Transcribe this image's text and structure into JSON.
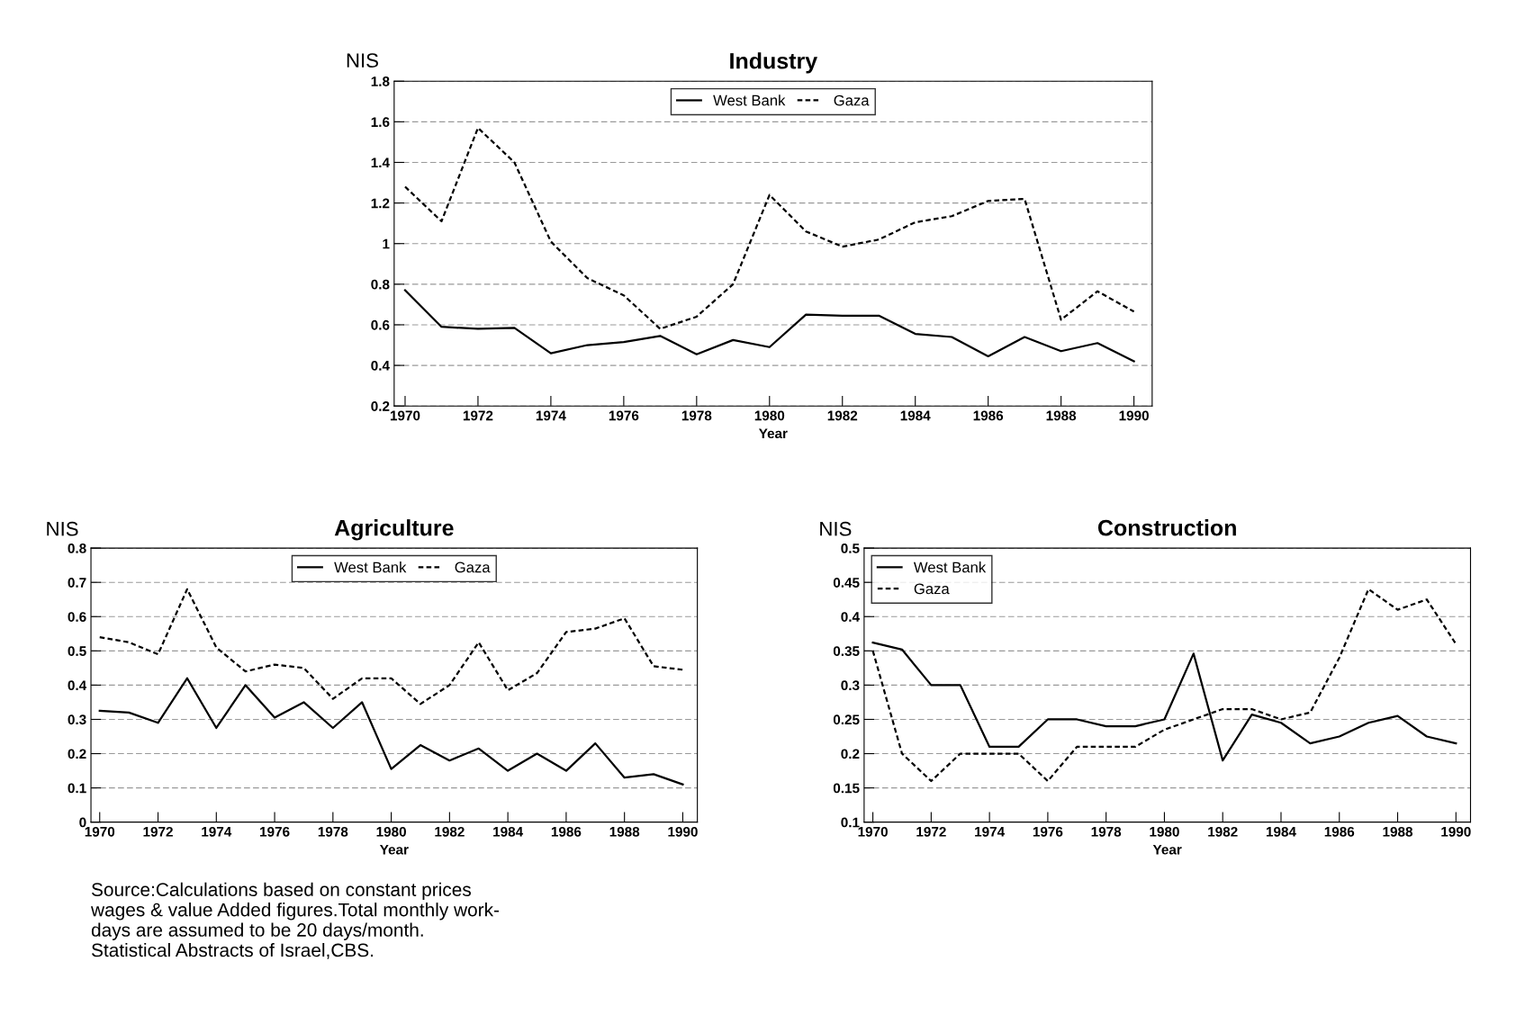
{
  "chart_data": [
    {
      "type": "line",
      "title": "Industry",
      "xlabel": "Year",
      "ylabel": "NIS",
      "x": [
        1970,
        1971,
        1972,
        1973,
        1974,
        1975,
        1976,
        1977,
        1978,
        1979,
        1980,
        1981,
        1982,
        1983,
        1984,
        1985,
        1986,
        1987,
        1988,
        1989,
        1990
      ],
      "xlim": [
        1969.7,
        1990.5
      ],
      "xticks": [
        1970,
        1972,
        1974,
        1976,
        1978,
        1980,
        1982,
        1984,
        1986,
        1988,
        1990
      ],
      "ylim": [
        0.2,
        1.8
      ],
      "yticks": [
        0.2,
        0.4,
        0.6,
        0.8,
        1,
        1.2,
        1.4,
        1.6,
        1.8
      ],
      "grid": "y",
      "legend": "top",
      "marker": "none",
      "series": [
        {
          "name": "West Bank",
          "color": "#000000",
          "line_style": "solid",
          "values": [
            0.77,
            0.59,
            0.58,
            0.585,
            0.46,
            0.5,
            0.515,
            0.545,
            0.455,
            0.525,
            0.49,
            0.65,
            0.645,
            0.645,
            0.555,
            0.54,
            0.445,
            0.54,
            0.47,
            0.51,
            0.42
          ]
        },
        {
          "name": "Gaza",
          "color": "#000000",
          "line_style": "dashed",
          "values": [
            1.28,
            1.11,
            1.57,
            1.4,
            1.01,
            0.83,
            0.745,
            0.58,
            0.64,
            0.8,
            1.24,
            1.06,
            0.985,
            1.02,
            1.105,
            1.135,
            1.21,
            1.22,
            0.625,
            0.765,
            0.665
          ]
        }
      ]
    },
    {
      "type": "line",
      "title": "Agriculture",
      "xlabel": "Year",
      "ylabel": "NIS",
      "x": [
        1970,
        1971,
        1972,
        1973,
        1974,
        1975,
        1976,
        1977,
        1978,
        1979,
        1980,
        1981,
        1982,
        1983,
        1984,
        1985,
        1986,
        1987,
        1988,
        1989,
        1990
      ],
      "xlim": [
        1969.7,
        1990.5
      ],
      "xticks": [
        1970,
        1972,
        1974,
        1976,
        1978,
        1980,
        1982,
        1984,
        1986,
        1988,
        1990
      ],
      "ylim": [
        0,
        0.8
      ],
      "yticks": [
        0,
        0.1,
        0.2,
        0.3,
        0.4,
        0.5,
        0.6,
        0.7,
        0.8
      ],
      "grid": "y",
      "legend": "top",
      "marker": "none",
      "annotations": [
        "Source:Calculations based on constant prices\nwages & value Added figures.Total monthly work-\ndays are assumed to be 20 days/month.\nStatistical Abstracts of Israel,CBS."
      ],
      "series": [
        {
          "name": "West Bank",
          "color": "#000000",
          "line_style": "solid",
          "values": [
            0.325,
            0.32,
            0.29,
            0.42,
            0.275,
            0.4,
            0.305,
            0.35,
            0.275,
            0.35,
            0.155,
            0.225,
            0.18,
            0.215,
            0.15,
            0.2,
            0.15,
            0.23,
            0.13,
            0.14,
            0.11
          ]
        },
        {
          "name": "Gaza",
          "color": "#000000",
          "line_style": "dashed",
          "values": [
            0.54,
            0.525,
            0.49,
            0.68,
            0.51,
            0.44,
            0.46,
            0.45,
            0.36,
            0.42,
            0.42,
            0.345,
            0.4,
            0.525,
            0.385,
            0.435,
            0.555,
            0.565,
            0.595,
            0.455,
            0.445
          ]
        }
      ]
    },
    {
      "type": "line",
      "title": "Construction",
      "xlabel": "Year",
      "ylabel": "NIS",
      "x": [
        1970,
        1971,
        1972,
        1973,
        1974,
        1975,
        1976,
        1977,
        1978,
        1979,
        1980,
        1981,
        1982,
        1983,
        1984,
        1985,
        1986,
        1987,
        1988,
        1989,
        1990
      ],
      "xlim": [
        1969.7,
        1990.5
      ],
      "xticks": [
        1970,
        1972,
        1974,
        1976,
        1978,
        1980,
        1982,
        1984,
        1986,
        1988,
        1990
      ],
      "ylim": [
        0.1,
        0.5
      ],
      "yticks": [
        0.1,
        0.15,
        0.2,
        0.25,
        0.3,
        0.35,
        0.4,
        0.45,
        0.5
      ],
      "grid": "y",
      "legend": "top left",
      "marker": "none",
      "series": [
        {
          "name": "West Bank",
          "color": "#000000",
          "line_style": "solid",
          "values": [
            0.362,
            0.352,
            0.3,
            0.3,
            0.21,
            0.21,
            0.25,
            0.25,
            0.24,
            0.24,
            0.25,
            0.346,
            0.19,
            0.257,
            0.245,
            0.215,
            0.225,
            0.245,
            0.255,
            0.225,
            0.215
          ]
        },
        {
          "name": "Gaza",
          "color": "#000000",
          "line_style": "dashed",
          "values": [
            0.35,
            0.2,
            0.16,
            0.2,
            0.2,
            0.2,
            0.16,
            0.21,
            0.21,
            0.21,
            0.235,
            0.25,
            0.265,
            0.265,
            0.25,
            0.26,
            0.34,
            0.44,
            0.41,
            0.425,
            0.36
          ]
        }
      ]
    }
  ]
}
